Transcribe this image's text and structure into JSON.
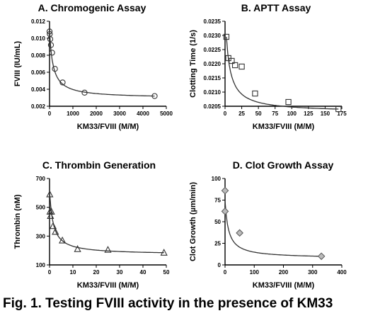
{
  "figure": {
    "caption": "Fig. 1.  Testing FVIII activity in the presence of KM33"
  },
  "chart_data": [
    {
      "type": "scatter",
      "title": "A.  Chromogenic Assay",
      "xlabel": "KM33/FVIII (M/M)",
      "ylabel": "FVIII (IU/mL)",
      "xlim": [
        0,
        5000
      ],
      "ylim": [
        0.002,
        0.012
      ],
      "xticks": [
        0,
        1000,
        2000,
        3000,
        4000,
        5000
      ],
      "yticks": [
        0.002,
        0.004,
        0.006,
        0.008,
        0.01,
        0.012
      ],
      "xtick_labels": [
        "0",
        "1000",
        "2000",
        "3000",
        "4000",
        "5000"
      ],
      "ytick_labels": [
        "0.002",
        "0.004",
        "0.006",
        "0.008",
        "0.010",
        "0.012"
      ],
      "marker": "circle",
      "points": {
        "x": [
          0,
          10,
          30,
          60,
          110,
          230,
          560,
          1500,
          4500
        ],
        "y": [
          0.0108,
          0.0105,
          0.0099,
          0.0092,
          0.0083,
          0.0064,
          0.0048,
          0.0036,
          0.0032
        ]
      },
      "fit_line": true
    },
    {
      "type": "scatter",
      "title": "B.  APTT Assay",
      "xlabel": "KM33/FVIII (M/M)",
      "ylabel": "Clotting Time (1/s)",
      "xlim": [
        0,
        175
      ],
      "ylim": [
        0.0205,
        0.0235
      ],
      "xticks": [
        0,
        25,
        50,
        75,
        100,
        125,
        150,
        175
      ],
      "yticks": [
        0.0205,
        0.021,
        0.0215,
        0.022,
        0.0225,
        0.023,
        0.0235
      ],
      "xtick_labels": [
        "0",
        "25",
        "50",
        "75",
        "100",
        "125",
        "150",
        "175"
      ],
      "ytick_labels": [
        "0.0205",
        "0.0210",
        "0.0215",
        "0.0220",
        "0.0225",
        "0.0230",
        "0.0235"
      ],
      "marker": "square",
      "points": {
        "x": [
          2,
          5,
          10,
          15,
          25,
          45,
          95,
          170
        ],
        "y": [
          0.02295,
          0.0222,
          0.0221,
          0.02195,
          0.0219,
          0.02095,
          0.02065,
          0.0204
        ]
      },
      "fit_line": true
    },
    {
      "type": "scatter",
      "title": "C.  Thrombin Generation",
      "xlabel": "KM33/FVIII (M/M)",
      "ylabel": "Thrombin (nM)",
      "xlim": [
        0,
        50
      ],
      "ylim": [
        100,
        700
      ],
      "xticks": [
        0,
        10,
        20,
        30,
        40,
        50
      ],
      "yticks": [
        100,
        300,
        500,
        700
      ],
      "xtick_labels": [
        "0",
        "10",
        "20",
        "30",
        "40",
        "50"
      ],
      "ytick_labels": [
        "100",
        "300",
        "500",
        "700"
      ],
      "marker": "triangle",
      "points": {
        "x": [
          0.1,
          0.2,
          0.4,
          0.8,
          1.5,
          2.5,
          5.5,
          12,
          25,
          49
        ],
        "y": [
          590,
          470,
          440,
          470,
          370,
          330,
          270,
          210,
          205,
          185
        ]
      },
      "fit_line": true
    },
    {
      "type": "scatter",
      "title": "D.  Clot Growth Assay",
      "xlabel": "KM33/FVIII (M/M)",
      "ylabel": "Clot Growth (µm/min)",
      "xlim": [
        0,
        400
      ],
      "ylim": [
        0,
        100
      ],
      "xticks": [
        0,
        100,
        200,
        300,
        400
      ],
      "yticks": [
        0,
        25,
        50,
        75,
        100
      ],
      "xtick_labels": [
        "0",
        "100",
        "200",
        "300",
        "400"
      ],
      "ytick_labels": [
        "0",
        "25",
        "50",
        "75",
        "100"
      ],
      "marker": "diamond",
      "points": {
        "x": [
          0,
          0,
          50,
          330
        ],
        "y": [
          86,
          62,
          37,
          10
        ]
      },
      "fit_line": true
    }
  ]
}
